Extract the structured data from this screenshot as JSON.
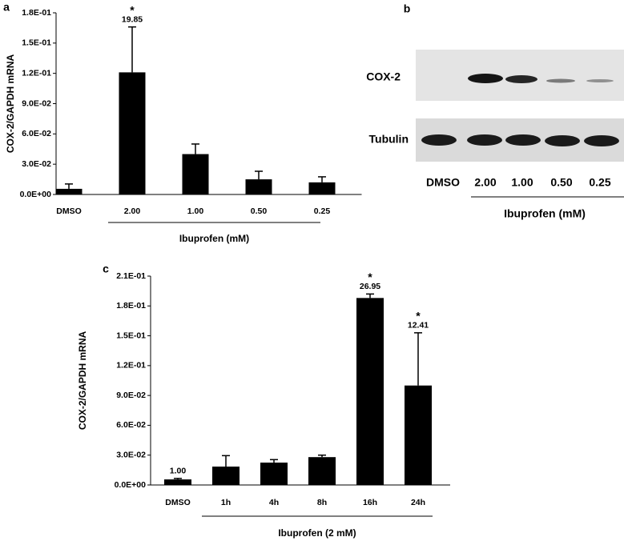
{
  "chart_data": [
    {
      "type": "bar",
      "panel_label": "a",
      "ylabel": "COX-2/GAPDH mRNA",
      "xlabel": "Ibuprofen (mM)",
      "categories": [
        "DMSO",
        "2.00",
        "1.00",
        "0.50",
        "0.25"
      ],
      "values": [
        0.0056,
        0.121,
        0.04,
        0.015,
        0.012
      ],
      "errors": [
        0.0048,
        0.045,
        0.01,
        0.008,
        0.0055
      ],
      "stars": [
        null,
        "*",
        null,
        null,
        null
      ],
      "fold_labels": [
        null,
        "19.85",
        null,
        null,
        null
      ],
      "color": "#000000",
      "ylim": [
        0,
        0.18
      ],
      "yticks": [
        {
          "value": 0,
          "label": "0.0E+00"
        },
        {
          "value": 0.03,
          "label": "3.0E-02"
        },
        {
          "value": 0.06,
          "label": "6.0E-02"
        },
        {
          "value": 0.09,
          "label": "9.0E-02"
        },
        {
          "value": 0.12,
          "label": "1.2E-01"
        },
        {
          "value": 0.15,
          "label": "1.5E-01"
        },
        {
          "value": 0.18,
          "label": "1.8E-01"
        }
      ]
    },
    {
      "type": "bar",
      "panel_label": "c",
      "ylabel": "COX-2/GAPDH mRNA",
      "xlabel": "Ibuprofen (2 mM)",
      "categories": [
        "DMSO",
        "1h",
        "4h",
        "8h",
        "16h",
        "24h"
      ],
      "values": [
        0.0056,
        0.0185,
        0.0225,
        0.028,
        0.188,
        0.1
      ],
      "errors": [
        0.001,
        0.011,
        0.003,
        0.002,
        0.004,
        0.053
      ],
      "stars": [
        null,
        null,
        null,
        null,
        "*",
        "*"
      ],
      "fold_labels": [
        "1.00",
        null,
        null,
        null,
        "26.95",
        "12.41"
      ],
      "color": "#000000",
      "ylim": [
        0,
        0.21
      ],
      "yticks": [
        {
          "value": 0,
          "label": "0.0E+00"
        },
        {
          "value": 0.03,
          "label": "3.0E-02"
        },
        {
          "value": 0.06,
          "label": "6.0E-02"
        },
        {
          "value": 0.09,
          "label": "9.0E-02"
        },
        {
          "value": 0.12,
          "label": "1.2E-01"
        },
        {
          "value": 0.15,
          "label": "1.5E-01"
        },
        {
          "value": 0.18,
          "label": "1.8E-01"
        },
        {
          "value": 0.21,
          "label": "2.1E-01"
        }
      ]
    }
  ],
  "blot": {
    "panel_label": "b",
    "rows": [
      "COX-2",
      "Tubulin"
    ],
    "lanes": [
      "DMSO",
      "2.00",
      "1.00",
      "0.50",
      "0.25"
    ],
    "xlabel": "Ibuprofen (mM)"
  }
}
